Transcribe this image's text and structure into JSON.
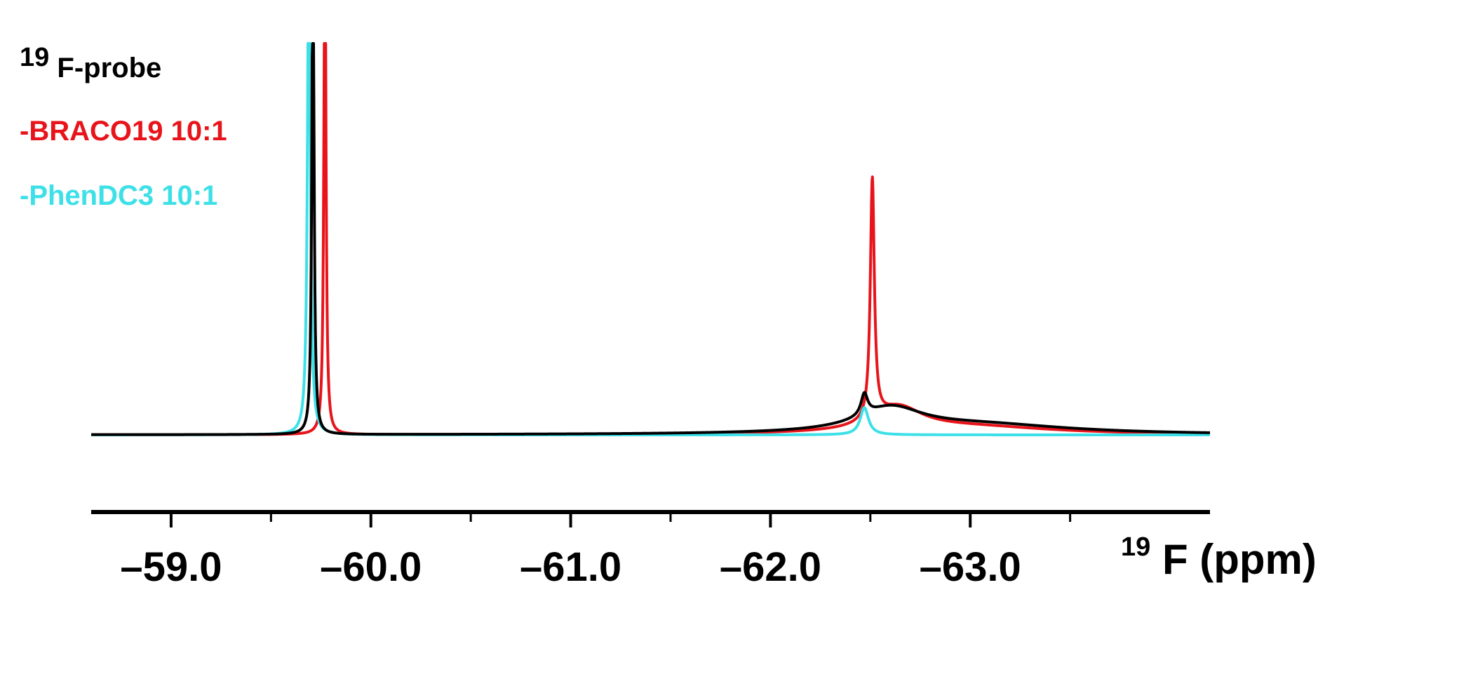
{
  "chart_data": {
    "type": "line",
    "title": "",
    "xlabel": {
      "superscript": "19",
      "text": "F (ppm)"
    },
    "ylabel": "",
    "x_reversed": true,
    "xlim": [
      -58.6,
      -64.2
    ],
    "ylim": [
      0,
      1
    ],
    "x_tick_labels": [
      "–59.0",
      "–60.0",
      "–61.0",
      "–62.0",
      "–63.0"
    ],
    "x_ticks_major": [
      -59.0,
      -60.0,
      -61.0,
      -62.0,
      -63.0
    ],
    "x_ticks_minor": [
      -59.5,
      -60.5,
      -61.5,
      -62.5,
      -63.5
    ],
    "y_axis_visible": false,
    "grid": false,
    "legend_placement": "top-left",
    "series": [
      {
        "name": "-BRACO19 10:1",
        "color": "#e8141b",
        "peaks": [
          {
            "x": -59.77,
            "height": 1.4,
            "width": 0.006
          },
          {
            "x": -62.51,
            "height": 0.62,
            "width": 0.012
          },
          {
            "x": -62.64,
            "height": 0.06,
            "width": 0.15
          },
          {
            "x": -63.0,
            "height": 0.02,
            "width": 0.5
          }
        ]
      },
      {
        "name": "-PhenDC3 10:1",
        "color": "#3ee0e8",
        "peaks": [
          {
            "x": -59.69,
            "height": 1.4,
            "width": 0.008
          },
          {
            "x": -62.47,
            "height": 0.07,
            "width": 0.025
          }
        ]
      },
      {
        "name": "19F-probe",
        "legend_label": {
          "superscript": "19",
          "text": "F-probe"
        },
        "color": "#000000",
        "peaks": [
          {
            "x": -59.71,
            "height": 1.4,
            "width": 0.006
          },
          {
            "x": -62.47,
            "height": 0.055,
            "width": 0.02
          },
          {
            "x": -62.6,
            "height": 0.06,
            "width": 0.2
          },
          {
            "x": -63.05,
            "height": 0.025,
            "width": 0.55
          }
        ]
      }
    ],
    "legend": [
      {
        "superscript": "19",
        "text": "F-probe",
        "color": "#000000"
      },
      {
        "superscript": "",
        "text": "-BRACO19 10:1",
        "color": "#e8141b"
      },
      {
        "superscript": "",
        "text": "-PhenDC3 10:1",
        "color": "#3ee0e8"
      }
    ]
  }
}
